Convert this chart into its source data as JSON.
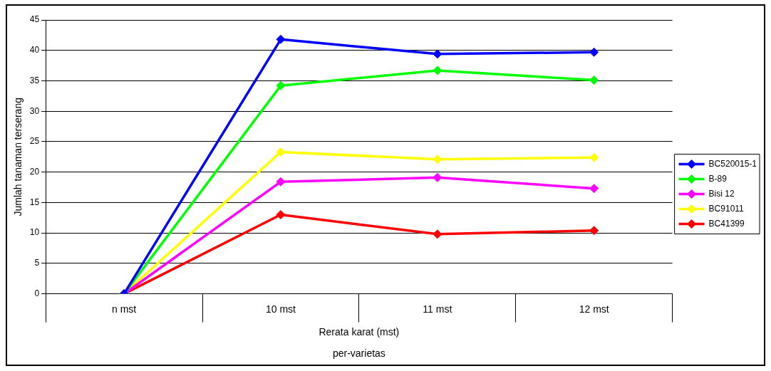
{
  "chart_data": {
    "type": "line",
    "xlabel": "Rerata karat (mst)\nper-varietas",
    "ylabel": "Jumlah tanaman terserang",
    "categories": [
      "n mst",
      "10 mst",
      "11 mst",
      "12 mst"
    ],
    "series": [
      {
        "name": "BC520015-1",
        "color": "#0000ff",
        "values": [
          0,
          41.8,
          39.4,
          39.7
        ]
      },
      {
        "name": "B-89",
        "color": "#00ff00",
        "values": [
          0,
          34.2,
          36.7,
          35.1
        ]
      },
      {
        "name": "Bisi 12",
        "color": "#ff00ff",
        "values": [
          0,
          18.4,
          19.1,
          17.3
        ]
      },
      {
        "name": "BC91011",
        "color": "#ffff00",
        "values": [
          0,
          23.3,
          22.1,
          22.4
        ]
      },
      {
        "name": "BC41399",
        "color": "#ff0000",
        "values": [
          0,
          13.0,
          9.8,
          10.4
        ]
      }
    ],
    "ylim": [
      0,
      45
    ],
    "yticks": [
      0,
      5,
      10,
      15,
      20,
      25,
      30,
      35,
      40,
      45
    ],
    "grid": "y",
    "legend": "right",
    "marker": "diamond",
    "line_style": "solid"
  }
}
